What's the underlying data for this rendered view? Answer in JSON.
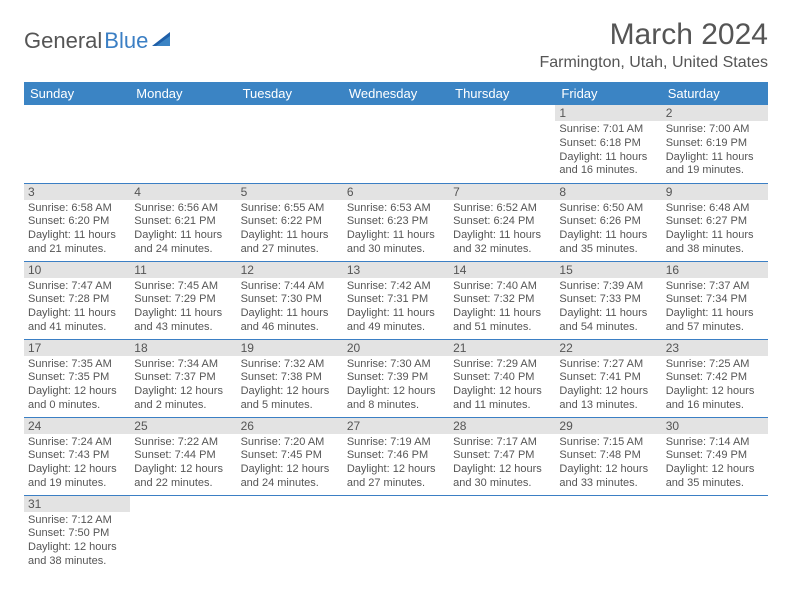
{
  "brand": {
    "part1": "General",
    "part2": "Blue"
  },
  "title": "March 2024",
  "location": "Farmington, Utah, United States",
  "colors": {
    "header_bg": "#3b84c4",
    "header_fg": "#ffffff",
    "daynum_bg": "#e3e3e3",
    "text": "#555555",
    "rule": "#3b7fc4",
    "logo_gray": "#555555",
    "logo_blue": "#3b7fc4"
  },
  "day_headers": [
    "Sunday",
    "Monday",
    "Tuesday",
    "Wednesday",
    "Thursday",
    "Friday",
    "Saturday"
  ],
  "weeks": [
    [
      null,
      null,
      null,
      null,
      null,
      {
        "n": "1",
        "sr": "7:01 AM",
        "ss": "6:18 PM",
        "dl": "11 hours and 16 minutes."
      },
      {
        "n": "2",
        "sr": "7:00 AM",
        "ss": "6:19 PM",
        "dl": "11 hours and 19 minutes."
      }
    ],
    [
      {
        "n": "3",
        "sr": "6:58 AM",
        "ss": "6:20 PM",
        "dl": "11 hours and 21 minutes."
      },
      {
        "n": "4",
        "sr": "6:56 AM",
        "ss": "6:21 PM",
        "dl": "11 hours and 24 minutes."
      },
      {
        "n": "5",
        "sr": "6:55 AM",
        "ss": "6:22 PM",
        "dl": "11 hours and 27 minutes."
      },
      {
        "n": "6",
        "sr": "6:53 AM",
        "ss": "6:23 PM",
        "dl": "11 hours and 30 minutes."
      },
      {
        "n": "7",
        "sr": "6:52 AM",
        "ss": "6:24 PM",
        "dl": "11 hours and 32 minutes."
      },
      {
        "n": "8",
        "sr": "6:50 AM",
        "ss": "6:26 PM",
        "dl": "11 hours and 35 minutes."
      },
      {
        "n": "9",
        "sr": "6:48 AM",
        "ss": "6:27 PM",
        "dl": "11 hours and 38 minutes."
      }
    ],
    [
      {
        "n": "10",
        "sr": "7:47 AM",
        "ss": "7:28 PM",
        "dl": "11 hours and 41 minutes."
      },
      {
        "n": "11",
        "sr": "7:45 AM",
        "ss": "7:29 PM",
        "dl": "11 hours and 43 minutes."
      },
      {
        "n": "12",
        "sr": "7:44 AM",
        "ss": "7:30 PM",
        "dl": "11 hours and 46 minutes."
      },
      {
        "n": "13",
        "sr": "7:42 AM",
        "ss": "7:31 PM",
        "dl": "11 hours and 49 minutes."
      },
      {
        "n": "14",
        "sr": "7:40 AM",
        "ss": "7:32 PM",
        "dl": "11 hours and 51 minutes."
      },
      {
        "n": "15",
        "sr": "7:39 AM",
        "ss": "7:33 PM",
        "dl": "11 hours and 54 minutes."
      },
      {
        "n": "16",
        "sr": "7:37 AM",
        "ss": "7:34 PM",
        "dl": "11 hours and 57 minutes."
      }
    ],
    [
      {
        "n": "17",
        "sr": "7:35 AM",
        "ss": "7:35 PM",
        "dl": "12 hours and 0 minutes."
      },
      {
        "n": "18",
        "sr": "7:34 AM",
        "ss": "7:37 PM",
        "dl": "12 hours and 2 minutes."
      },
      {
        "n": "19",
        "sr": "7:32 AM",
        "ss": "7:38 PM",
        "dl": "12 hours and 5 minutes."
      },
      {
        "n": "20",
        "sr": "7:30 AM",
        "ss": "7:39 PM",
        "dl": "12 hours and 8 minutes."
      },
      {
        "n": "21",
        "sr": "7:29 AM",
        "ss": "7:40 PM",
        "dl": "12 hours and 11 minutes."
      },
      {
        "n": "22",
        "sr": "7:27 AM",
        "ss": "7:41 PM",
        "dl": "12 hours and 13 minutes."
      },
      {
        "n": "23",
        "sr": "7:25 AM",
        "ss": "7:42 PM",
        "dl": "12 hours and 16 minutes."
      }
    ],
    [
      {
        "n": "24",
        "sr": "7:24 AM",
        "ss": "7:43 PM",
        "dl": "12 hours and 19 minutes."
      },
      {
        "n": "25",
        "sr": "7:22 AM",
        "ss": "7:44 PM",
        "dl": "12 hours and 22 minutes."
      },
      {
        "n": "26",
        "sr": "7:20 AM",
        "ss": "7:45 PM",
        "dl": "12 hours and 24 minutes."
      },
      {
        "n": "27",
        "sr": "7:19 AM",
        "ss": "7:46 PM",
        "dl": "12 hours and 27 minutes."
      },
      {
        "n": "28",
        "sr": "7:17 AM",
        "ss": "7:47 PM",
        "dl": "12 hours and 30 minutes."
      },
      {
        "n": "29",
        "sr": "7:15 AM",
        "ss": "7:48 PM",
        "dl": "12 hours and 33 minutes."
      },
      {
        "n": "30",
        "sr": "7:14 AM",
        "ss": "7:49 PM",
        "dl": "12 hours and 35 minutes."
      }
    ],
    [
      {
        "n": "31",
        "sr": "7:12 AM",
        "ss": "7:50 PM",
        "dl": "12 hours and 38 minutes."
      },
      null,
      null,
      null,
      null,
      null,
      null
    ]
  ],
  "labels": {
    "sunrise": "Sunrise:",
    "sunset": "Sunset:",
    "daylight": "Daylight:"
  }
}
